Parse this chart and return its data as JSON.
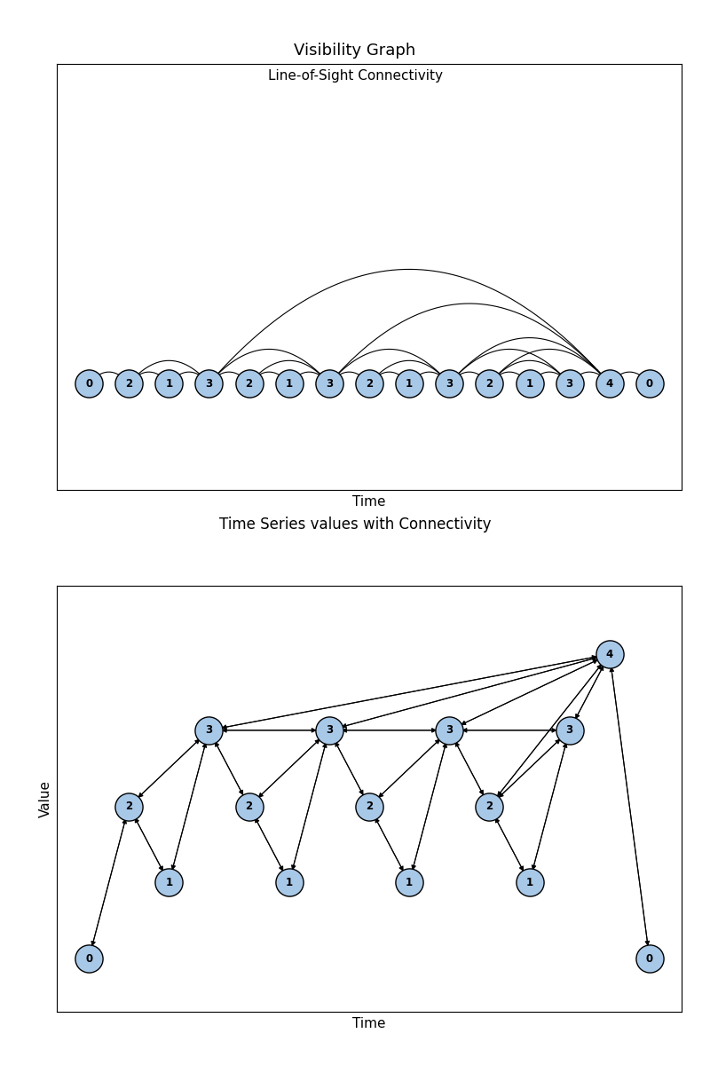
{
  "title1": "Visibility Graph",
  "subtitle1": "Line-of-Sight Connectivity",
  "title2": "Time Series values with Connectivity",
  "xlabel": "Time",
  "ylabel": "Value",
  "series": [
    0,
    2,
    1,
    3,
    2,
    1,
    3,
    2,
    1,
    3,
    2,
    1,
    3,
    4,
    0
  ],
  "node_color": "#a8c8e8",
  "node_edge_color": "#000000",
  "arc_color": "black",
  "arrow_color": "black",
  "fig_width": 8.0,
  "fig_height": 12.0,
  "dpi": 100
}
